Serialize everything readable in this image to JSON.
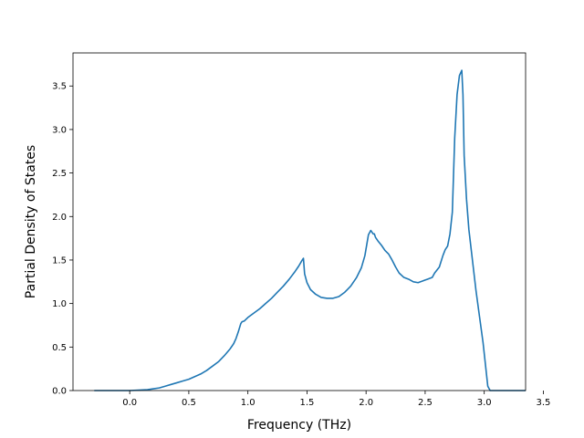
{
  "chart_data": {
    "type": "line",
    "title": "",
    "xlabel": "Frequency (THz)",
    "ylabel": "Partial Density of States",
    "xlim": [
      -0.48,
      3.35
    ],
    "ylim": [
      0.0,
      3.88
    ],
    "xticks": [
      0.0,
      0.5,
      1.0,
      1.5,
      2.0,
      2.5,
      3.0,
      3.5
    ],
    "xtick_labels": [
      "0.0",
      "0.5",
      "1.0",
      "1.5",
      "2.0",
      "2.5",
      "3.0",
      "3.5"
    ],
    "yticks": [
      0.0,
      0.5,
      1.0,
      1.5,
      2.0,
      2.5,
      3.0,
      3.5
    ],
    "ytick_labels": [
      "0.0",
      "0.5",
      "1.0",
      "1.5",
      "2.0",
      "2.5",
      "3.0",
      "3.5"
    ],
    "grid": false,
    "legend": "none",
    "series": [
      {
        "color": "#1f77b4",
        "x": [
          -0.3,
          0.0,
          0.15,
          0.2,
          0.25,
          0.3,
          0.35,
          0.4,
          0.45,
          0.5,
          0.55,
          0.6,
          0.65,
          0.7,
          0.75,
          0.8,
          0.85,
          0.88,
          0.9,
          0.92,
          0.94,
          0.95,
          0.97,
          1.0,
          1.05,
          1.1,
          1.15,
          1.2,
          1.25,
          1.3,
          1.35,
          1.4,
          1.43,
          1.46,
          1.47,
          1.48,
          1.5,
          1.53,
          1.57,
          1.62,
          1.67,
          1.72,
          1.77,
          1.82,
          1.87,
          1.92,
          1.96,
          1.99,
          2.02,
          2.04,
          2.06,
          2.07,
          2.08,
          2.1,
          2.13,
          2.16,
          2.19,
          2.22,
          2.25,
          2.28,
          2.32,
          2.36,
          2.4,
          2.44,
          2.48,
          2.5,
          2.52,
          2.56,
          2.58,
          2.62,
          2.65,
          2.67,
          2.69,
          2.71,
          2.73,
          2.75,
          2.77,
          2.79,
          2.81,
          2.82,
          2.83,
          2.85,
          2.87,
          2.9,
          2.93,
          2.96,
          2.99,
          3.01,
          3.03,
          3.05,
          3.07,
          3.15,
          3.35
        ],
        "y": [
          0.0,
          0.0,
          0.01,
          0.02,
          0.03,
          0.05,
          0.07,
          0.09,
          0.11,
          0.13,
          0.16,
          0.19,
          0.23,
          0.28,
          0.33,
          0.4,
          0.48,
          0.54,
          0.6,
          0.68,
          0.77,
          0.79,
          0.8,
          0.84,
          0.89,
          0.94,
          1.0,
          1.06,
          1.13,
          1.2,
          1.28,
          1.37,
          1.43,
          1.5,
          1.52,
          1.34,
          1.24,
          1.16,
          1.11,
          1.07,
          1.06,
          1.06,
          1.08,
          1.13,
          1.2,
          1.3,
          1.41,
          1.55,
          1.79,
          1.84,
          1.8,
          1.8,
          1.76,
          1.72,
          1.67,
          1.61,
          1.57,
          1.5,
          1.42,
          1.35,
          1.3,
          1.28,
          1.25,
          1.24,
          1.26,
          1.27,
          1.28,
          1.3,
          1.35,
          1.42,
          1.55,
          1.62,
          1.66,
          1.8,
          2.05,
          2.9,
          3.4,
          3.62,
          3.68,
          3.4,
          2.7,
          2.2,
          1.85,
          1.5,
          1.15,
          0.85,
          0.55,
          0.3,
          0.05,
          0.0,
          0.0,
          0.0,
          0.0
        ]
      }
    ]
  }
}
